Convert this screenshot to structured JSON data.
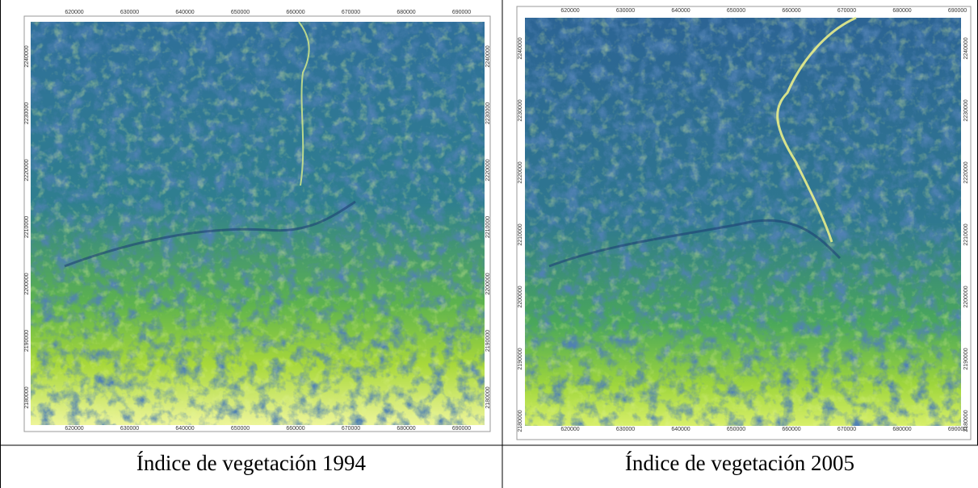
{
  "panels": [
    {
      "caption": "Índice de vegetación 1994",
      "x_ticks": [
        "620000",
        "630000",
        "640000",
        "650000",
        "660000",
        "670000",
        "680000",
        "690000"
      ],
      "y_ticks": [
        "2240000",
        "2230000",
        "2220000",
        "2210000",
        "2200000",
        "2190000",
        "2180000"
      ]
    },
    {
      "caption": "Índice de vegetación 2005",
      "x_ticks": [
        "620000",
        "630000",
        "640000",
        "650000",
        "660000",
        "670000",
        "680000",
        "690000"
      ],
      "y_ticks": [
        "2240000",
        "2230000",
        "2220000",
        "2210000",
        "2200000",
        "2190000",
        "2180000"
      ]
    }
  ]
}
